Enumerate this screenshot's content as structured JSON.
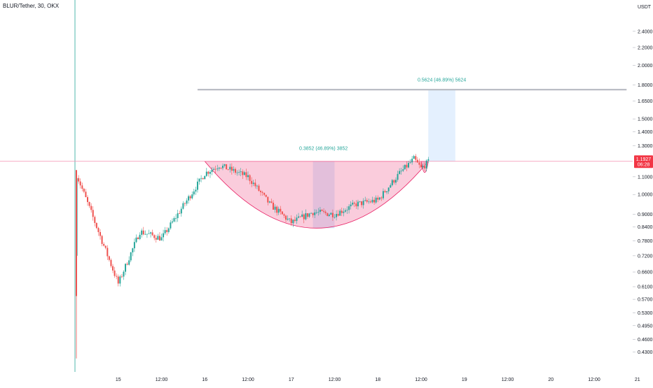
{
  "symbol": {
    "title": "BLUR/Tether, 30, OKX"
  },
  "colors": {
    "up": "#26a69a",
    "down": "#ef5350",
    "cup_fill": "#f48fb1",
    "cup_stroke": "#e91e63",
    "measure_fill": "#b3d4fc",
    "target_line": "#b2b5be",
    "price_tag": "#f23645",
    "measure_text": "#26a69a"
  },
  "price_tag": {
    "value": "1.1927",
    "countdown": "06:28"
  },
  "chart_data": {
    "type": "candlestick",
    "title": "BLUR/Tether, 30, OKX",
    "y_unit": "USDT",
    "y_scale": "log",
    "ylim": [
      0.41,
      2.75
    ],
    "x_range": [
      "14 12:00",
      "21 00:30"
    ],
    "y_ticks": [
      "2.4000",
      "2.2000",
      "2.0000",
      "1.8000",
      "1.6500",
      "1.5000",
      "1.4000",
      "1.3000",
      "1.1000",
      "1.0000",
      "0.9000",
      "0.8400",
      "0.7800",
      "0.7200",
      "0.6600",
      "0.6100",
      "0.5700",
      "0.5300",
      "0.4950",
      "0.4600",
      "0.4300"
    ],
    "x_ticks": [
      "15",
      "12:00",
      "16",
      "12:00",
      "17",
      "12:00",
      "18",
      "12:00",
      "19",
      "12:00",
      "20",
      "12:00",
      "21"
    ],
    "current_price": 1.1927,
    "resistance_level": 1.195,
    "target_level": 1.755,
    "annotations": [
      {
        "text": "0.3852 (46.89%) 3852"
      },
      {
        "text": "0.5624 (46.89%) 5624"
      }
    ],
    "key_points": [
      {
        "t": "14 12:00",
        "price": 0.415
      },
      {
        "t": "14 12:00",
        "price": 1.14
      },
      {
        "t": "15 00:00",
        "price": 0.62
      },
      {
        "t": "15 06:00",
        "price": 0.82
      },
      {
        "t": "15 12:00",
        "price": 0.79
      },
      {
        "t": "15 18:00",
        "price": 0.94
      },
      {
        "t": "16 00:00",
        "price": 1.12
      },
      {
        "t": "16 04:00",
        "price": 1.17
      },
      {
        "t": "16 12:00",
        "price": 1.1
      },
      {
        "t": "16 18:00",
        "price": 0.95
      },
      {
        "t": "17 00:00",
        "price": 0.86
      },
      {
        "t": "17 06:00",
        "price": 0.91
      },
      {
        "t": "17 12:00",
        "price": 0.9
      },
      {
        "t": "17 18:00",
        "price": 0.95
      },
      {
        "t": "18 00:00",
        "price": 0.97
      },
      {
        "t": "18 06:00",
        "price": 1.12
      },
      {
        "t": "18 10:00",
        "price": 1.21
      },
      {
        "t": "18 12:00",
        "price": 1.15
      },
      {
        "t": "18 14:00",
        "price": 1.19
      }
    ]
  }
}
